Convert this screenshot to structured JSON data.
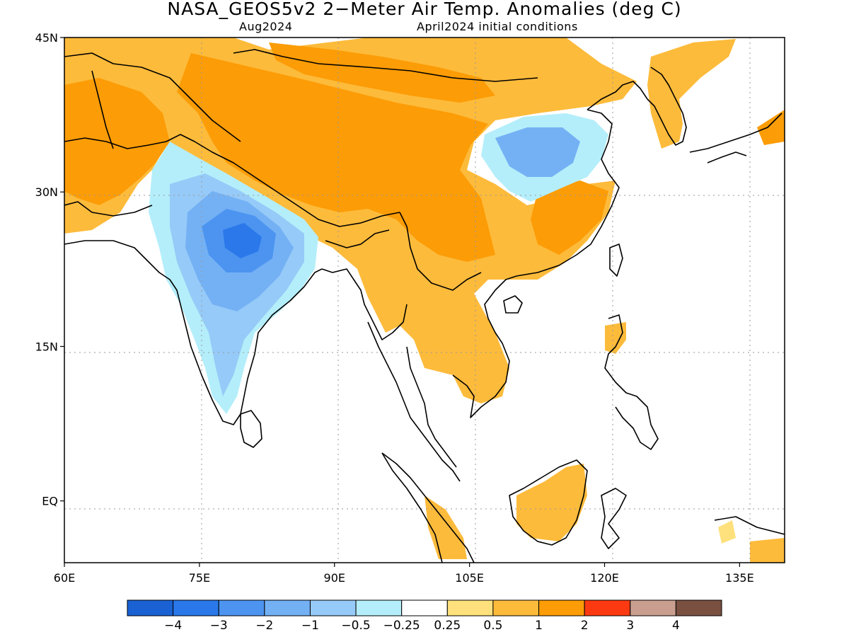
{
  "title": "NASA_GEOS5v2 2−Meter Air Temp. Anomalies (deg C)",
  "subtitle_left": "Aug2024",
  "subtitle_right": "April2024 initial conditions",
  "map": {
    "lon_range": [
      60,
      140
    ],
    "lat_range": [
      -6,
      45
    ],
    "lat_ticks": [
      {
        "value": 45,
        "label": "45N"
      },
      {
        "value": 30,
        "label": "30N"
      },
      {
        "value": 15,
        "label": "15N"
      },
      {
        "value": 0,
        "label": "EQ"
      }
    ],
    "lon_ticks": [
      {
        "value": 60,
        "label": "60E"
      },
      {
        "value": 75,
        "label": "75E"
      },
      {
        "value": 90,
        "label": "90E"
      },
      {
        "value": 105,
        "label": "105E"
      },
      {
        "value": 120,
        "label": "120E"
      },
      {
        "value": 135,
        "label": "135E"
      }
    ]
  },
  "colorbar": {
    "colors": [
      "#1a62d4",
      "#2a78ea",
      "#4c94f0",
      "#74b1f4",
      "#96caf8",
      "#b4eefa",
      "#ffffff",
      "#fee17d",
      "#fdbb3b",
      "#fc9c06",
      "#fb3a12",
      "#c99e8e",
      "#7a5040"
    ],
    "labels": [
      "−4",
      "−3",
      "−2",
      "−1",
      "−0.5",
      "−0.25",
      "0.25",
      "0.5",
      "1",
      "2",
      "3",
      "4"
    ]
  }
}
